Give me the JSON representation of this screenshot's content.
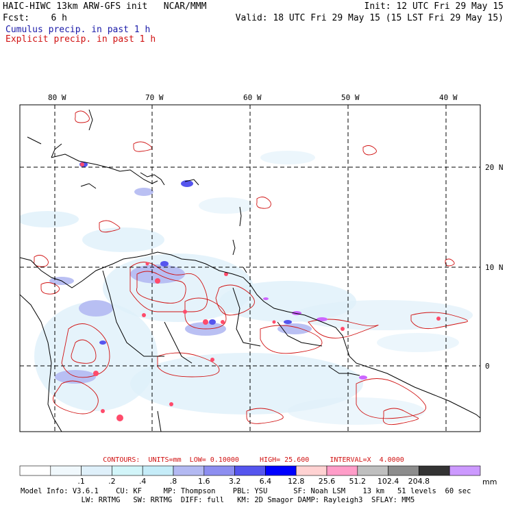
{
  "header": {
    "title": "HAIC-HIWC 13km ARW-GFS init   NCAR/MMM",
    "init": "Init: 12 UTC Fri 29 May 15",
    "fcst_label": "Fcst:    6 h",
    "valid": "Valid: 18 UTC Fri 29 May 15 (15 LST Fri 29 May 15)",
    "cumulus": "Cumulus precip. in past 1 h",
    "explicit": "Explicit precip. in past 1 h"
  },
  "map": {
    "lon_labels": [
      "80 W",
      "70 W",
      "60 W",
      "50 W",
      "40 W"
    ],
    "lat_labels": [
      "20 N",
      "10 N",
      "0"
    ]
  },
  "contours": {
    "text": "CONTOURS:  UNITS=mm  LOW= 0.10000     HIGH= 25.600     INTERVAL=X  4.0000"
  },
  "colorbar": {
    "ticks": [
      ".1",
      ".2",
      ".4",
      ".8",
      "1.6",
      "3.2",
      "6.4",
      "12.8",
      "25.6",
      "51.2",
      "102.4",
      "204.8"
    ],
    "unit": "mm",
    "colors": [
      "#ffffff",
      "#f0f8fc",
      "#dff0fa",
      "#d2f5f9",
      "#c5ecf8",
      "#b3b9f2",
      "#8d8ef0",
      "#5555ee",
      "#0000ff",
      "#ffd2d2",
      "#ff9dc8",
      "#bfbfbf",
      "#8c8c8c",
      "#333333",
      "#cc99ff"
    ]
  },
  "model_info": {
    "line1": "Model Info: V3.6.1    CU: KF     MP: Thompson    PBL: YSU      SF: Noah LSM    13 km   51 levels  60 sec",
    "line2": "              LW: RRTMG   SW: RRTMG  DIFF: full   KM: 2D Smagor DAMP: Rayleigh3  SFLAY: MM5"
  }
}
